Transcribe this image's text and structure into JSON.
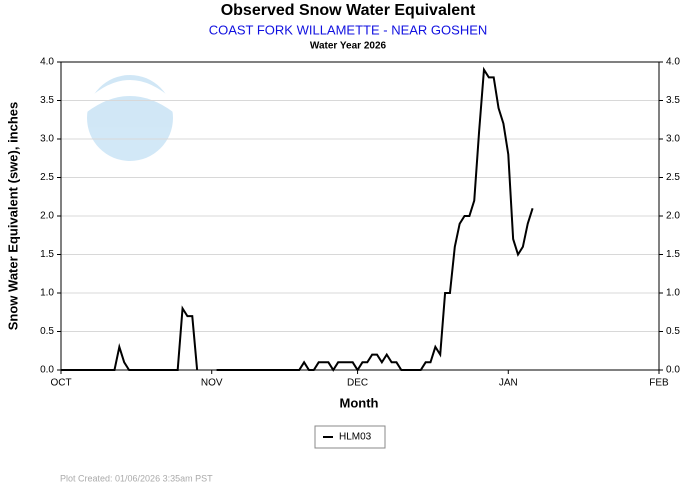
{
  "chart_data": {
    "type": "line",
    "title": "Observed Snow Water Equivalent",
    "subtitle": "COAST FORK WILLAMETTE - NEAR GOSHEN",
    "subtitle2": "Water Year 2026",
    "ylabel": "Snow Water Equivalent (swe),  inches",
    "xlabel": "Month",
    "footer": "Plot Created: 01/06/2026 3:35am PST",
    "xlim": [
      0,
      123
    ],
    "xticks": [
      {
        "value": 0,
        "label": "OCT"
      },
      {
        "value": 31,
        "label": "NOV"
      },
      {
        "value": 61,
        "label": "DEC"
      },
      {
        "value": 92,
        "label": "JAN"
      },
      {
        "value": 123,
        "label": "FEB"
      }
    ],
    "ylim": [
      0,
      4
    ],
    "yticks": [
      {
        "value": 0,
        "label": "0.0"
      },
      0.5,
      {
        "value": 1,
        "label": "1.0"
      },
      1.5,
      {
        "value": 2,
        "label": "2.0"
      },
      2.5,
      {
        "value": 3,
        "label": "3.0"
      },
      3.5,
      {
        "value": 4,
        "label": "4.0"
      }
    ],
    "grid": true,
    "legend": "bottom",
    "x": [
      0,
      1,
      2,
      3,
      4,
      5,
      6,
      7,
      8,
      9,
      10,
      11,
      12,
      13,
      14,
      15,
      16,
      17,
      18,
      19,
      20,
      21,
      22,
      23,
      24,
      25,
      26,
      27,
      28,
      29,
      30,
      31,
      32,
      33,
      34,
      35,
      36,
      37,
      38,
      39,
      40,
      41,
      42,
      43,
      44,
      45,
      46,
      47,
      48,
      49,
      50,
      51,
      52,
      53,
      54,
      55,
      56,
      57,
      58,
      59,
      60,
      61,
      62,
      63,
      64,
      65,
      66,
      67,
      68,
      69,
      70,
      71,
      72,
      73,
      74,
      75,
      76,
      77,
      78,
      79,
      80,
      81,
      82,
      83,
      84,
      85,
      86,
      87,
      88,
      89,
      90,
      91,
      92,
      93,
      94,
      95,
      96,
      97
    ],
    "series": [
      {
        "name": "HLM03",
        "color": "#000000",
        "values": [
          0,
          0,
          0,
          0,
          0,
          0,
          0,
          0,
          0,
          0,
          0,
          0,
          0.3,
          0.1,
          0,
          0,
          0,
          0,
          0,
          0,
          0,
          0,
          0,
          0,
          0,
          0.8,
          0.7,
          0.7,
          0,
          null,
          null,
          null,
          0,
          0,
          0,
          0,
          0,
          0,
          0,
          0,
          0,
          0,
          0,
          0,
          0,
          0,
          0,
          0,
          0,
          0,
          0.1,
          0,
          0,
          0.1,
          0.1,
          0.1,
          0,
          0.1,
          0.1,
          0.1,
          0.1,
          0,
          0.1,
          0.1,
          0.2,
          0.2,
          0.1,
          0.2,
          0.1,
          0.1,
          0,
          0,
          0,
          0,
          0,
          0.1,
          0.1,
          0.3,
          0.2,
          1.0,
          1.0,
          1.6,
          1.9,
          2.0,
          2.0,
          2.2,
          3.1,
          3.9,
          3.8,
          3.8,
          3.4,
          3.2,
          2.8,
          1.7,
          1.5,
          1.6,
          1.9,
          2.1
        ]
      }
    ]
  }
}
